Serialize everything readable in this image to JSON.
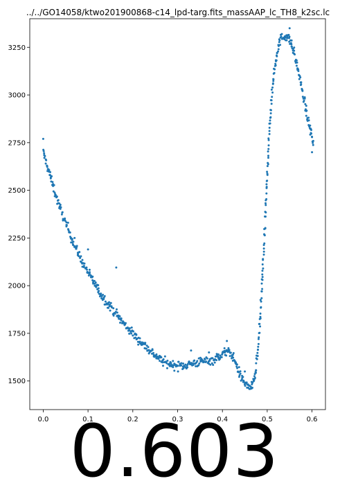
{
  "chart_data": {
    "type": "scatter",
    "title": "../../GO14058/ktwo201900868-c14_lpd-targ.fits_massAAP_lc_TH8_k2sc.lc",
    "xlabel": "",
    "ylabel": "",
    "xlim": [
      -0.03,
      0.63
    ],
    "ylim": [
      1350,
      3400
    ],
    "x_ticks": [
      0.0,
      0.1,
      0.2,
      0.3,
      0.4,
      0.5,
      0.6
    ],
    "x_tick_labels": [
      "0.0",
      "0.1",
      "0.2",
      "0.3",
      "0.4",
      "0.5",
      "0.6"
    ],
    "y_ticks": [
      1500,
      1750,
      2000,
      2250,
      2500,
      2750,
      3000,
      3250
    ],
    "y_tick_labels": [
      "1500",
      "1750",
      "2000",
      "2250",
      "2500",
      "2750",
      "3000",
      "3250"
    ],
    "grid": false,
    "color": "#1f77b4",
    "series": [
      {
        "x": [
          0.0,
          0.01,
          0.02,
          0.03,
          0.04,
          0.05,
          0.06,
          0.07,
          0.08,
          0.09,
          0.1,
          0.11,
          0.12,
          0.13,
          0.14,
          0.15,
          0.16,
          0.17,
          0.18,
          0.19,
          0.2,
          0.21,
          0.22,
          0.23,
          0.24,
          0.25,
          0.26,
          0.27,
          0.28,
          0.29,
          0.3,
          0.31,
          0.32,
          0.33,
          0.34,
          0.35,
          0.36,
          0.37,
          0.38,
          0.39,
          0.4,
          0.405,
          0.41,
          0.415,
          0.42,
          0.425,
          0.43,
          0.435,
          0.44,
          0.445,
          0.45,
          0.455,
          0.46,
          0.465,
          0.47,
          0.475,
          0.48,
          0.485,
          0.49,
          0.495,
          0.5,
          0.505,
          0.51,
          0.515,
          0.52,
          0.525,
          0.53,
          0.535,
          0.54,
          0.545,
          0.55,
          0.555,
          0.56,
          0.565,
          0.57,
          0.575,
          0.58,
          0.585,
          0.59,
          0.595,
          0.6,
          0.603
        ],
        "y": [
          2700,
          2620,
          2540,
          2460,
          2390,
          2330,
          2270,
          2210,
          2160,
          2110,
          2070,
          2030,
          1990,
          1950,
          1920,
          1890,
          1860,
          1830,
          1800,
          1775,
          1750,
          1725,
          1700,
          1680,
          1655,
          1635,
          1615,
          1600,
          1590,
          1585,
          1580,
          1580,
          1585,
          1590,
          1595,
          1600,
          1605,
          1608,
          1610,
          1625,
          1640,
          1650,
          1655,
          1650,
          1640,
          1620,
          1590,
          1560,
          1530,
          1505,
          1490,
          1475,
          1470,
          1470,
          1490,
          1560,
          1680,
          1860,
          2080,
          2320,
          2580,
          2820,
          3000,
          3120,
          3200,
          3260,
          3290,
          3305,
          3310,
          3305,
          3290,
          3260,
          3220,
          3170,
          3120,
          3060,
          3000,
          2940,
          2880,
          2830,
          2780,
          2740
        ]
      }
    ],
    "outliers": [
      {
        "x": 0.0,
        "y": 2770
      },
      {
        "x": 0.07,
        "y": 2250
      },
      {
        "x": 0.1,
        "y": 2190
      },
      {
        "x": 0.163,
        "y": 2095
      },
      {
        "x": 0.33,
        "y": 1660
      },
      {
        "x": 0.37,
        "y": 1650
      },
      {
        "x": 0.41,
        "y": 1710
      },
      {
        "x": 0.55,
        "y": 3350
      },
      {
        "x": 0.45,
        "y": 1550
      },
      {
        "x": 0.6,
        "y": 2700
      }
    ]
  },
  "overlay_value": "0.603"
}
